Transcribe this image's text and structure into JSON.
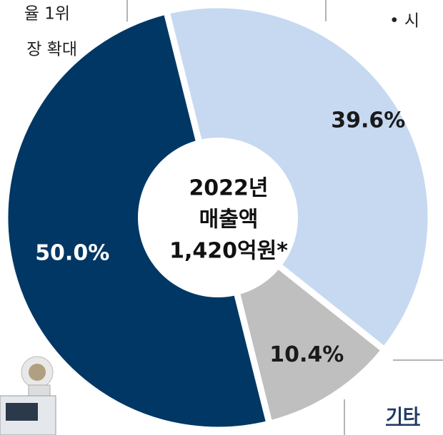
{
  "chart_data": {
    "type": "donut",
    "categories": [
      "39.6%",
      "10.4%",
      "50.0%"
    ],
    "values": [
      39.6,
      10.4,
      50.0
    ],
    "value_labels": [
      "39.6%",
      "10.4%",
      "50.0%"
    ],
    "colors": [
      "#c6d9f1",
      "#bfbfbf",
      "#003764"
    ],
    "center_text": [
      "2022년",
      "매출액",
      "1,420억원*"
    ],
    "annotations": [
      "율 1위",
      "장 확대",
      "•  시",
      "기타"
    ]
  }
}
